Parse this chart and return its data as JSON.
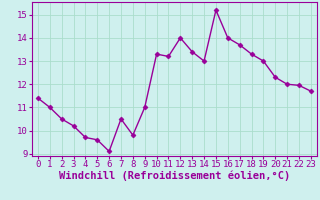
{
  "x": [
    0,
    1,
    2,
    3,
    4,
    5,
    6,
    7,
    8,
    9,
    10,
    11,
    12,
    13,
    14,
    15,
    16,
    17,
    18,
    19,
    20,
    21,
    22,
    23
  ],
  "y": [
    11.4,
    11.0,
    10.5,
    10.2,
    9.7,
    9.6,
    9.1,
    10.5,
    9.8,
    11.0,
    13.3,
    13.2,
    14.0,
    13.4,
    13.0,
    15.2,
    14.0,
    13.7,
    13.3,
    13.0,
    12.3,
    12.0,
    11.95,
    11.7
  ],
  "line_color": "#990099",
  "marker": "D",
  "marker_size": 2.5,
  "bg_color": "#cff0ee",
  "grid_color": "#aaddcc",
  "xlabel": "Windchill (Refroidissement éolien,°C)",
  "xlabel_color": "#990099",
  "ylabel_color": "#990099",
  "tick_color": "#990099",
  "xlim": [
    -0.5,
    23.5
  ],
  "ylim": [
    8.9,
    15.55
  ],
  "yticks": [
    9,
    10,
    11,
    12,
    13,
    14,
    15
  ],
  "xticks": [
    0,
    1,
    2,
    3,
    4,
    5,
    6,
    7,
    8,
    9,
    10,
    11,
    12,
    13,
    14,
    15,
    16,
    17,
    18,
    19,
    20,
    21,
    22,
    23
  ],
  "linewidth": 1.0,
  "font_size": 6.5,
  "xlabel_fontsize": 7.5
}
